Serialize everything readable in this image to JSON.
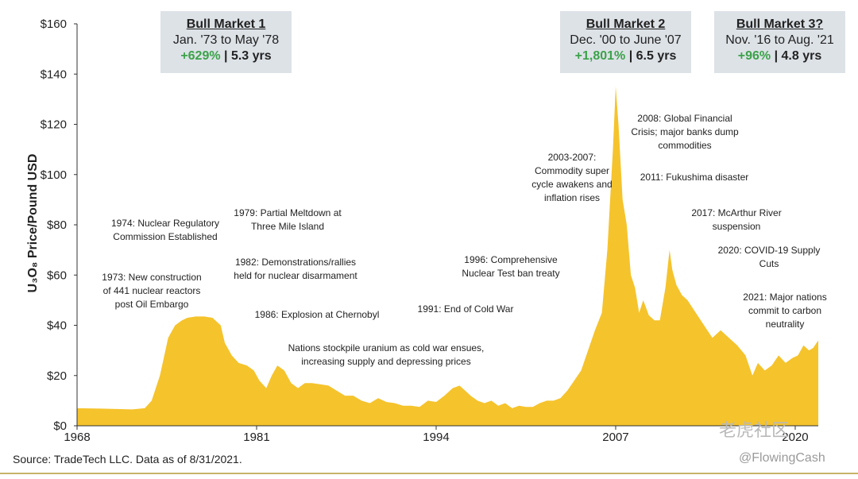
{
  "chart_data": {
    "type": "area",
    "ylabel": "U₃O₈ Price/Pound USD",
    "ylim": [
      0,
      160
    ],
    "xlim": [
      1968,
      2021.67
    ],
    "yticks": [
      "$0",
      "$20",
      "$40",
      "$60",
      "$80",
      "$100",
      "$120",
      "$140",
      "$160"
    ],
    "ytick_values": [
      0,
      20,
      40,
      60,
      80,
      100,
      120,
      140,
      160
    ],
    "xticks": [
      "1968",
      "1981",
      "1994",
      "2007",
      "2020"
    ],
    "xtick_values": [
      1968,
      1981,
      1994,
      2007,
      2020
    ],
    "color": "#f5c32c",
    "series": [
      {
        "x": [
          1968,
          1970,
          1972,
          1972.9,
          1973.4,
          1974,
          1974.6,
          1975.1,
          1975.6,
          1976,
          1976.6,
          1977.2,
          1977.8,
          1978.4,
          1978.7,
          1979.2,
          1979.7,
          1980.3,
          1980.8,
          1981.2,
          1981.7,
          1982.1,
          1982.5,
          1983,
          1983.5,
          1984,
          1984.5,
          1985,
          1985.6,
          1986.2,
          1986.8,
          1987.4,
          1988,
          1988.6,
          1989.2,
          1989.8,
          1990.4,
          1991,
          1991.6,
          1992.2,
          1992.8,
          1993.4,
          1994,
          1994.6,
          1995.2,
          1995.7,
          1996.1,
          1996.5,
          1997,
          1997.5,
          1998,
          1998.5,
          1999,
          1999.5,
          2000,
          2000.5,
          2001,
          2001.5,
          2002,
          2002.5,
          2003,
          2003.5,
          2004,
          2004.5,
          2005,
          2005.5,
          2006,
          2006.4,
          2006.8,
          2007,
          2007.2,
          2007.5,
          2007.8,
          2008.1,
          2008.4,
          2008.7,
          2009,
          2009.4,
          2009.8,
          2010.2,
          2010.6,
          2010.9,
          2011.1,
          2011.4,
          2011.8,
          2012.2,
          2012.8,
          2013.4,
          2014,
          2014.6,
          2015.2,
          2015.8,
          2016.4,
          2016.9,
          2017.3,
          2017.8,
          2018.3,
          2018.8,
          2019.3,
          2019.8,
          2020.2,
          2020.6,
          2021,
          2021.3,
          2021.67
        ],
        "values": [
          7,
          6.8,
          6.5,
          7,
          10,
          20,
          35,
          40,
          42,
          43,
          43.5,
          43.5,
          43,
          40,
          33,
          28,
          25,
          24,
          22,
          18,
          15,
          20,
          24,
          22,
          17,
          15,
          17,
          17,
          16.5,
          16,
          14,
          12,
          12,
          10,
          9,
          11,
          9.5,
          9,
          8,
          8,
          7.5,
          10,
          9.5,
          12,
          15,
          16,
          14,
          12,
          10,
          9,
          10,
          8,
          9,
          7,
          8,
          7.5,
          7.5,
          9,
          10,
          10,
          11,
          14,
          18,
          22,
          30,
          38,
          45,
          70,
          110,
          135,
          120,
          90,
          80,
          60,
          55,
          45,
          50,
          44,
          42,
          42,
          55,
          70,
          62,
          56,
          52,
          50,
          45,
          40,
          35,
          38,
          35,
          32,
          28,
          20,
          25,
          22,
          24,
          28,
          25,
          27,
          28,
          32,
          30,
          31,
          34
        ]
      }
    ],
    "boxes": [
      {
        "title": "Bull Market 1",
        "dates": "Jan. '73 to May '78",
        "gain": "+629%",
        "sep": " | ",
        "duration": "5.3 yrs"
      },
      {
        "title": "Bull Market 2",
        "dates": "Dec. '00 to June '07",
        "gain": "+1,801%",
        "sep": " | ",
        "duration": "6.5 yrs"
      },
      {
        "title": "Bull Market 3?",
        "dates": "Nov. '16 to Aug. '21",
        "gain": "+96%",
        "sep": " | ",
        "duration": "4.8 yrs"
      }
    ],
    "annotations": [
      "1974: Nuclear Regulatory\nCommission Established",
      "1973: New construction\nof 441 nuclear reactors\npost Oil Embargo",
      "1979: Partial Meltdown at\nThree Mile Island",
      "1982: Demonstrations/rallies\nheld for nuclear disarmament",
      "1986: Explosion at Chernobyl",
      "Nations stockpile uranium as cold war ensues,\nincreasing supply and depressing prices",
      "1991: End of Cold War",
      "1996: Comprehensive\nNuclear Test ban treaty",
      "2003-2007:\nCommodity super\ncycle awakens and\ninflation rises",
      "2008: Global Financial\nCrisis; major banks dump\ncommodities",
      "2011: Fukushima disaster",
      "2017: McArthur River\nsuspension",
      "2020: COVID-19 Supply\nCuts",
      "2021: Major nations\ncommit to carbon\nneutrality"
    ]
  },
  "source": "Source: TradeTech LLC. Data as of 8/31/2021.",
  "watermark": {
    "brand": "老虎社区",
    "handle": "@FlowingCash"
  }
}
